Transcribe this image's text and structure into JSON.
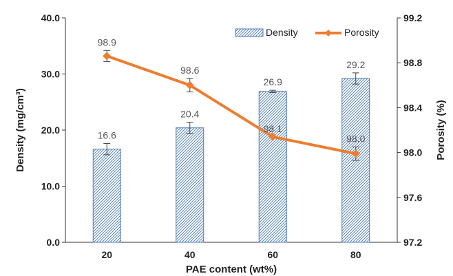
{
  "chart_data": {
    "type": "bar",
    "title": "",
    "categories": [
      "20",
      "40",
      "60",
      "80"
    ],
    "xlabel": "PAE content (wt%)",
    "ylabel_left": "Density (mg/cm³)",
    "ylabel_right": "Porosity (%)",
    "ylim_left": [
      0,
      40
    ],
    "yticks_left": [
      "0.0",
      "10.0",
      "20.0",
      "30.0",
      "40.0"
    ],
    "ylim_right": [
      97.2,
      99.2
    ],
    "yticks_right": [
      "97.2",
      "97.6",
      "98.0",
      "98.4",
      "98.8",
      "99.2"
    ],
    "grid": false,
    "legend_position": "top-right",
    "series": [
      {
        "name": "Density",
        "kind": "bar",
        "axis": "left",
        "values": [
          16.6,
          20.4,
          26.9,
          29.2
        ],
        "labels": [
          "16.6",
          "20.4",
          "26.9",
          "29.2"
        ],
        "errors": [
          1.0,
          1.0,
          0.2,
          1.0
        ],
        "color": "#4a79b8",
        "pattern": "diagonal-hatch"
      },
      {
        "name": "Porosity",
        "kind": "line",
        "axis": "right",
        "values": [
          98.86,
          98.6,
          98.14,
          97.99
        ],
        "labels": [
          "98.9",
          "98.6",
          "98.1",
          "98.0"
        ],
        "errors": [
          0.05,
          0.06,
          0.0,
          0.06
        ],
        "color": "#ed7d31",
        "marker": "diamond"
      }
    ]
  }
}
